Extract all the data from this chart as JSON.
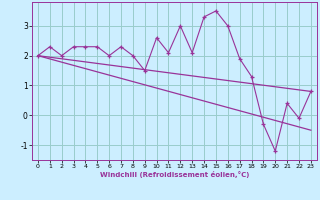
{
  "xlabel": "Windchill (Refroidissement éolien,°C)",
  "x_data": [
    0,
    1,
    2,
    3,
    4,
    5,
    6,
    7,
    8,
    9,
    10,
    11,
    12,
    13,
    14,
    15,
    16,
    17,
    18,
    19,
    20,
    21,
    22,
    23
  ],
  "y_scatter": [
    2.0,
    2.3,
    2.0,
    2.3,
    2.3,
    2.3,
    2.0,
    2.3,
    2.0,
    1.5,
    2.6,
    2.1,
    3.0,
    2.1,
    3.3,
    3.5,
    3.0,
    1.9,
    1.3,
    -0.3,
    -1.2,
    0.4,
    -0.1,
    0.8
  ],
  "y_line1_x": [
    0,
    23
  ],
  "y_line1_y": [
    2.0,
    0.8
  ],
  "y_line2_x": [
    0,
    23
  ],
  "y_line2_y": [
    2.0,
    -0.5
  ],
  "line_color": "#993399",
  "scatter_color": "#993399",
  "bg_color": "#cceeff",
  "grid_color": "#99cccc",
  "ylim": [
    -1.5,
    3.8
  ],
  "xlim": [
    -0.5,
    23.5
  ],
  "yticks": [
    -1,
    0,
    1,
    2,
    3
  ],
  "xticks": [
    0,
    1,
    2,
    3,
    4,
    5,
    6,
    7,
    8,
    9,
    10,
    11,
    12,
    13,
    14,
    15,
    16,
    17,
    18,
    19,
    20,
    21,
    22,
    23
  ]
}
